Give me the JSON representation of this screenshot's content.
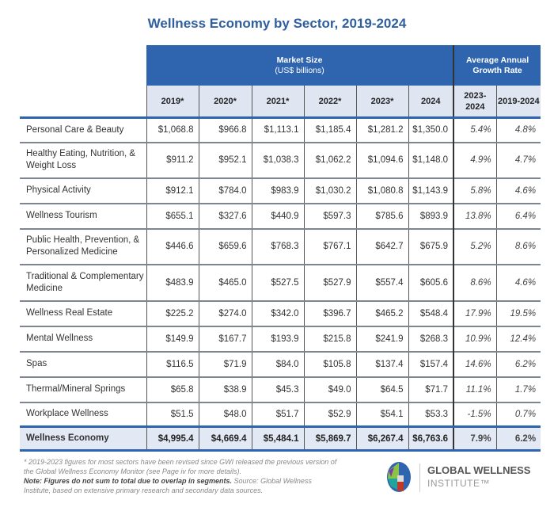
{
  "title": "Wellness Economy by Sector, 2019-2024",
  "header": {
    "market_size": "Market Size",
    "market_size_unit": "(US$ billions)",
    "growth": "Average Annual Growth Rate",
    "years": [
      "2019*",
      "2020*",
      "2021*",
      "2022*",
      "2023*",
      "2024"
    ],
    "growth_periods": [
      "2023-2024",
      "2019-2024"
    ]
  },
  "rows": [
    {
      "sector": "Personal Care & Beauty",
      "values": [
        "$1,068.8",
        "$966.8",
        "$1,113.1",
        "$1,185.4",
        "$1,281.2",
        "$1,350.0"
      ],
      "growth": [
        "5.4%",
        "4.8%"
      ]
    },
    {
      "sector": "Healthy Eating, Nutrition, & Weight Loss",
      "values": [
        "$911.2",
        "$952.1",
        "$1,038.3",
        "$1,062.2",
        "$1,094.6",
        "$1,148.0"
      ],
      "growth": [
        "4.9%",
        "4.7%"
      ]
    },
    {
      "sector": "Physical Activity",
      "values": [
        "$912.1",
        "$784.0",
        "$983.9",
        "$1,030.2",
        "$1,080.8",
        "$1,143.9"
      ],
      "growth": [
        "5.8%",
        "4.6%"
      ]
    },
    {
      "sector": "Wellness Tourism",
      "values": [
        "$655.1",
        "$327.6",
        "$440.9",
        "$597.3",
        "$785.6",
        "$893.9"
      ],
      "growth": [
        "13.8%",
        "6.4%"
      ]
    },
    {
      "sector": "Public Health, Prevention, & Personalized Medicine",
      "values": [
        "$446.6",
        "$659.6",
        "$768.3",
        "$767.1",
        "$642.7",
        "$675.9"
      ],
      "growth": [
        "5.2%",
        "8.6%"
      ]
    },
    {
      "sector": "Traditional & Complementary Medicine",
      "values": [
        "$483.9",
        "$465.0",
        "$527.5",
        "$527.9",
        "$557.4",
        "$605.6"
      ],
      "growth": [
        "8.6%",
        "4.6%"
      ]
    },
    {
      "sector": "Wellness Real Estate",
      "values": [
        "$225.2",
        "$274.0",
        "$342.0",
        "$396.7",
        "$465.2",
        "$548.4"
      ],
      "growth": [
        "17.9%",
        "19.5%"
      ]
    },
    {
      "sector": "Mental Wellness",
      "values": [
        "$149.9",
        "$167.7",
        "$193.9",
        "$215.8",
        "$241.9",
        "$268.3"
      ],
      "growth": [
        "10.9%",
        "12.4%"
      ]
    },
    {
      "sector": "Spas",
      "values": [
        "$116.5",
        "$71.9",
        "$84.0",
        "$105.8",
        "$137.4",
        "$157.4"
      ],
      "growth": [
        "14.6%",
        "6.2%"
      ]
    },
    {
      "sector": "Thermal/Mineral Springs",
      "values": [
        "$65.8",
        "$38.9",
        "$45.3",
        "$49.0",
        "$64.5",
        "$71.7"
      ],
      "growth": [
        "11.1%",
        "1.7%"
      ]
    },
    {
      "sector": "Workplace Wellness",
      "values": [
        "$51.5",
        "$48.0",
        "$51.7",
        "$52.9",
        "$54.1",
        "$53.3"
      ],
      "growth": [
        "-1.5%",
        "0.7%"
      ]
    }
  ],
  "total": {
    "sector": "Wellness Economy",
    "values": [
      "$4,995.4",
      "$4,669.4",
      "$5,484.1",
      "$5,869.7",
      "$6,267.4",
      "$6,763.6"
    ],
    "growth": [
      "7.9%",
      "6.2%"
    ]
  },
  "footnote": {
    "revised": "* 2019-2023 figures for most sectors have been revised since GWI released the previous version of the Global Wellness Economy Monitor (see Page iv for more details).",
    "note": "Note: Figures do not sum to total due to overlap in segments.",
    "source": "Source: Global Wellness Institute, based on extensive primary research and secondary data sources."
  },
  "brand": {
    "line1": "GLOBAL WELLNESS",
    "line2": "INSTITUTE™"
  },
  "colors": {
    "header_blue": "#2f64ae",
    "subheader": "#dfe6f1",
    "total_row": "#e3e9f4",
    "title": "#2f5f9e"
  }
}
